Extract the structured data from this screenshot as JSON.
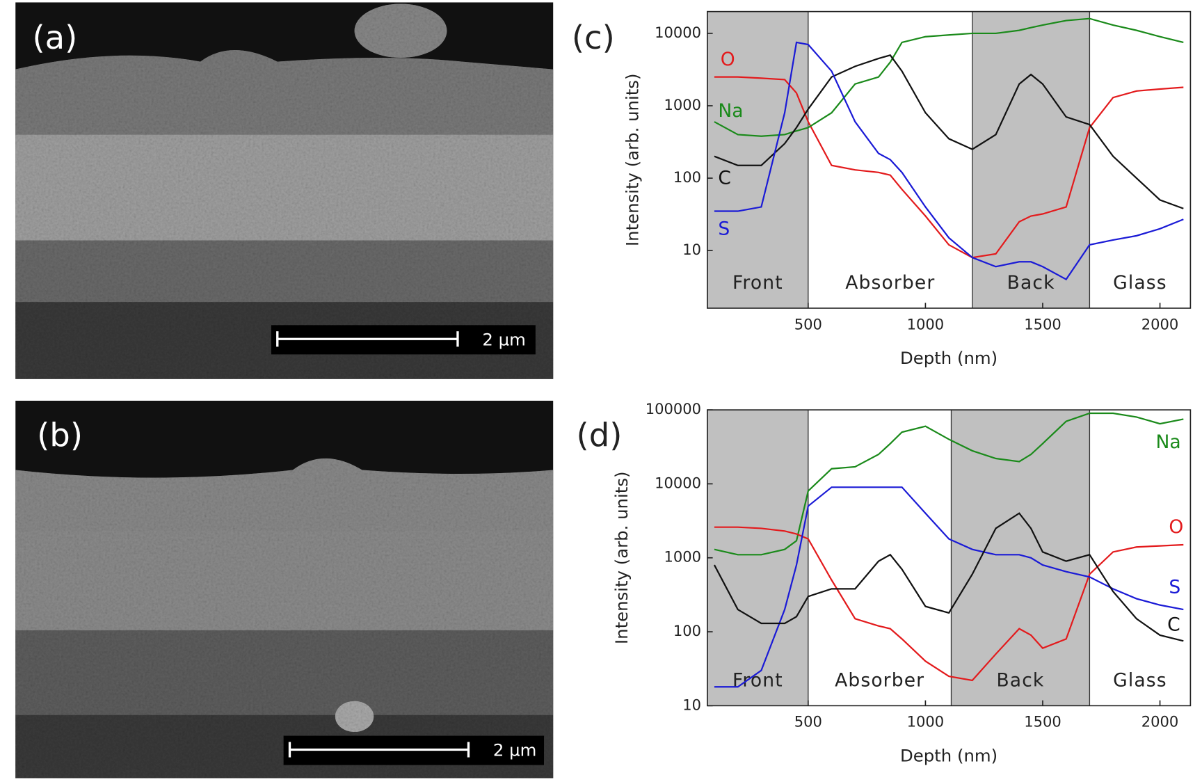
{
  "panels": [
    {
      "label": "(a)",
      "scale_bar": "2 µm"
    },
    {
      "label": "(b)",
      "scale_bar": "2 µm"
    }
  ],
  "chart_data": [
    {
      "type": "line",
      "panel_label": "(c)",
      "x_label": "Depth (nm)",
      "y_label": "Intensity (arb. units)",
      "log_y": true,
      "xlim": [
        70,
        2130
      ],
      "ylim": [
        1.6,
        20000
      ],
      "xticks": [
        500,
        1000,
        1500,
        2000
      ],
      "yticks": [
        10,
        100,
        1000,
        10000
      ],
      "regions": [
        {
          "label": "Front",
          "start": 70,
          "end": 500,
          "shaded": true
        },
        {
          "label": "Absorber",
          "start": 500,
          "end": 1200,
          "shaded": false
        },
        {
          "label": "Back",
          "start": 1200,
          "end": 1700,
          "shaded": true
        },
        {
          "label": "Glass",
          "start": 1700,
          "end": 2130,
          "shaded": false
        }
      ],
      "x": [
        100,
        200,
        300,
        400,
        450,
        500,
        600,
        700,
        800,
        850,
        900,
        1000,
        1100,
        1200,
        1300,
        1400,
        1450,
        1500,
        1600,
        1700,
        1800,
        1900,
        2000,
        2100
      ],
      "series": [
        {
          "name": "O",
          "color": "#e31a1c",
          "values": [
            2500,
            2500,
            2400,
            2300,
            1500,
            600,
            150,
            130,
            120,
            110,
            70,
            30,
            12,
            8,
            9,
            25,
            30,
            32,
            40,
            500,
            1300,
            1600,
            1700,
            1800
          ]
        },
        {
          "name": "Na",
          "color": "#1a8a1a",
          "values": [
            600,
            400,
            380,
            400,
            450,
            500,
            800,
            2000,
            2500,
            4000,
            7500,
            9000,
            9500,
            10000,
            10000,
            11000,
            12000,
            13000,
            15000,
            16000,
            13000,
            11000,
            9000,
            7500
          ]
        },
        {
          "name": "C",
          "color": "#111111",
          "values": [
            200,
            150,
            150,
            300,
            500,
            900,
            2500,
            3500,
            4500,
            5000,
            3000,
            800,
            350,
            250,
            400,
            2000,
            2700,
            2000,
            700,
            550,
            200,
            100,
            50,
            38
          ]
        },
        {
          "name": "S",
          "color": "#1a1ad6",
          "values": [
            35,
            35,
            40,
            800,
            7500,
            7000,
            3000,
            600,
            220,
            180,
            120,
            40,
            15,
            8,
            6,
            7,
            7,
            6,
            4,
            12,
            14,
            16,
            20,
            27
          ]
        }
      ]
    },
    {
      "type": "line",
      "panel_label": "(d)",
      "x_label": "Depth (nm)",
      "y_label": "Intensity (arb. units)",
      "log_y": true,
      "xlim": [
        70,
        2130
      ],
      "ylim": [
        10,
        100000
      ],
      "xticks": [
        500,
        1000,
        1500,
        2000
      ],
      "yticks": [
        10,
        100,
        1000,
        10000,
        100000
      ],
      "regions": [
        {
          "label": "Front",
          "start": 70,
          "end": 500,
          "shaded": true
        },
        {
          "label": "Absorber",
          "start": 500,
          "end": 1110,
          "shaded": false
        },
        {
          "label": "Back",
          "start": 1110,
          "end": 1700,
          "shaded": true
        },
        {
          "label": "Glass",
          "start": 1700,
          "end": 2130,
          "shaded": false
        }
      ],
      "x": [
        100,
        200,
        300,
        400,
        450,
        500,
        600,
        700,
        800,
        850,
        900,
        1000,
        1100,
        1200,
        1300,
        1400,
        1450,
        1500,
        1600,
        1700,
        1800,
        1900,
        2000,
        2100
      ],
      "series": [
        {
          "name": "Na",
          "color": "#1a8a1a",
          "values": [
            1300,
            1100,
            1100,
            1300,
            1700,
            8000,
            16000,
            17000,
            25000,
            35000,
            50000,
            60000,
            40000,
            28000,
            22000,
            20000,
            25000,
            35000,
            70000,
            90000,
            90000,
            80000,
            65000,
            75000
          ]
        },
        {
          "name": "O",
          "color": "#e31a1c",
          "values": [
            2600,
            2600,
            2500,
            2300,
            2100,
            1800,
            500,
            150,
            120,
            110,
            80,
            40,
            25,
            22,
            50,
            110,
            90,
            60,
            80,
            600,
            1200,
            1400,
            1450,
            1500
          ]
        },
        {
          "name": "S",
          "color": "#1a1ad6",
          "values": [
            18,
            18,
            30,
            200,
            800,
            5000,
            9000,
            9000,
            9000,
            9000,
            9000,
            4000,
            1800,
            1300,
            1100,
            1100,
            1000,
            800,
            650,
            550,
            380,
            280,
            230,
            200
          ]
        },
        {
          "name": "C",
          "color": "#111111",
          "values": [
            800,
            200,
            130,
            130,
            160,
            300,
            380,
            380,
            900,
            1100,
            700,
            220,
            180,
            600,
            2500,
            4000,
            2500,
            1200,
            900,
            1100,
            350,
            150,
            90,
            75
          ]
        }
      ]
    }
  ]
}
